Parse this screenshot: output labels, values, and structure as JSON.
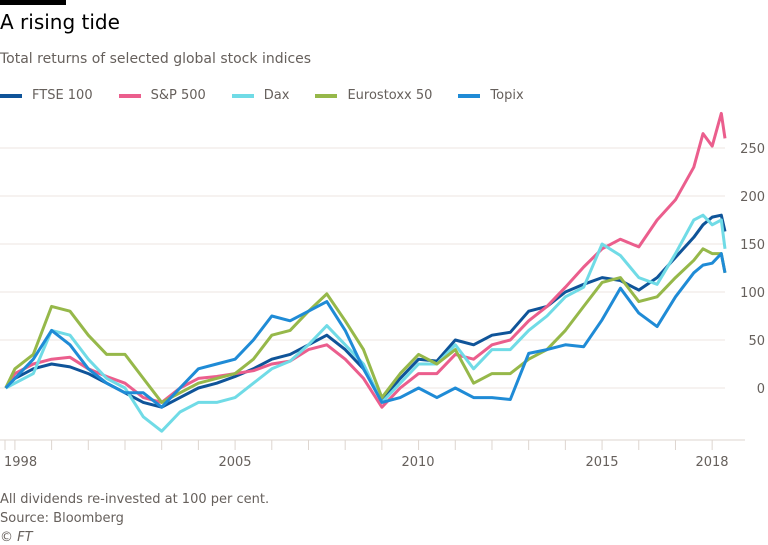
{
  "header": {
    "title": "A rising tide",
    "subtitle": "Total returns of selected global stock indices"
  },
  "footer": {
    "note": "All dividends re-invested at 100 per cent.",
    "source": "Source: Bloomberg",
    "credit": "© FT"
  },
  "chart_data": {
    "type": "line",
    "title": "A rising tide",
    "subtitle": "Total returns of selected global stock indices",
    "xlabel": "",
    "ylabel": "",
    "xlim": [
      1998.73,
      2018.35
    ],
    "ylim": [
      -50,
      290
    ],
    "yticks": [
      0,
      50,
      100,
      150,
      200,
      250
    ],
    "xtick_labels": [
      "1998",
      "2005",
      "2010",
      "2015",
      "2018"
    ],
    "grid": true,
    "legend": "top",
    "x": [
      1998.75,
      1999,
      1999.5,
      2000,
      2000.5,
      2001,
      2001.5,
      2002,
      2002.5,
      2003,
      2003.5,
      2004,
      2004.5,
      2005,
      2005.5,
      2006,
      2006.5,
      2007,
      2007.5,
      2008,
      2008.5,
      2009,
      2009.5,
      2010,
      2010.5,
      2011,
      2011.5,
      2012,
      2012.5,
      2013,
      2013.5,
      2014,
      2014.5,
      2015,
      2015.5,
      2016,
      2016.5,
      2017,
      2017.5,
      2017.75,
      2018,
      2018.25,
      2018.35
    ],
    "series": [
      {
        "name": "FTSE 100",
        "color": "#0f5499",
        "values": [
          0,
          10,
          20,
          25,
          22,
          15,
          5,
          -5,
          -15,
          -20,
          -10,
          0,
          5,
          12,
          20,
          30,
          35,
          45,
          55,
          40,
          20,
          -12,
          10,
          30,
          28,
          50,
          45,
          55,
          58,
          80,
          85,
          100,
          108,
          115,
          112,
          102,
          115,
          136,
          157,
          170,
          178,
          180,
          163
        ]
      },
      {
        "name": "S&P 500",
        "color": "#eb5e8d",
        "values": [
          0,
          15,
          25,
          30,
          32,
          20,
          12,
          5,
          -10,
          -15,
          0,
          10,
          12,
          15,
          18,
          25,
          28,
          40,
          45,
          30,
          10,
          -20,
          0,
          15,
          15,
          35,
          30,
          45,
          50,
          70,
          85,
          105,
          126,
          145,
          155,
          147,
          175,
          196,
          230,
          265,
          252,
          286,
          260
        ]
      },
      {
        "name": "Dax",
        "color": "#70dbe6",
        "values": [
          0,
          5,
          15,
          60,
          55,
          30,
          10,
          0,
          -30,
          -45,
          -25,
          -15,
          -15,
          -10,
          5,
          20,
          28,
          45,
          65,
          45,
          25,
          -15,
          5,
          25,
          25,
          45,
          20,
          40,
          40,
          60,
          75,
          95,
          105,
          150,
          138,
          115,
          108,
          140,
          175,
          180,
          170,
          175,
          145
        ]
      },
      {
        "name": "Eurostoxx 50",
        "color": "#96b84a",
        "values": [
          0,
          20,
          35,
          85,
          80,
          55,
          35,
          35,
          10,
          -15,
          -5,
          5,
          10,
          15,
          30,
          55,
          60,
          80,
          98,
          70,
          40,
          -10,
          15,
          35,
          25,
          40,
          5,
          15,
          15,
          30,
          40,
          60,
          85,
          110,
          115,
          90,
          95,
          115,
          133,
          145,
          140,
          140,
          120
        ]
      },
      {
        "name": "Topix",
        "color": "#1f8bd6",
        "values": [
          0,
          10,
          30,
          60,
          45,
          20,
          5,
          -5,
          -5,
          -20,
          0,
          20,
          25,
          30,
          50,
          75,
          70,
          80,
          90,
          60,
          20,
          -15,
          -10,
          0,
          -10,
          0,
          -10,
          -10,
          -12,
          36,
          40,
          45,
          43,
          71,
          104,
          78,
          64,
          95,
          120,
          128,
          130,
          140,
          120
        ]
      }
    ]
  }
}
